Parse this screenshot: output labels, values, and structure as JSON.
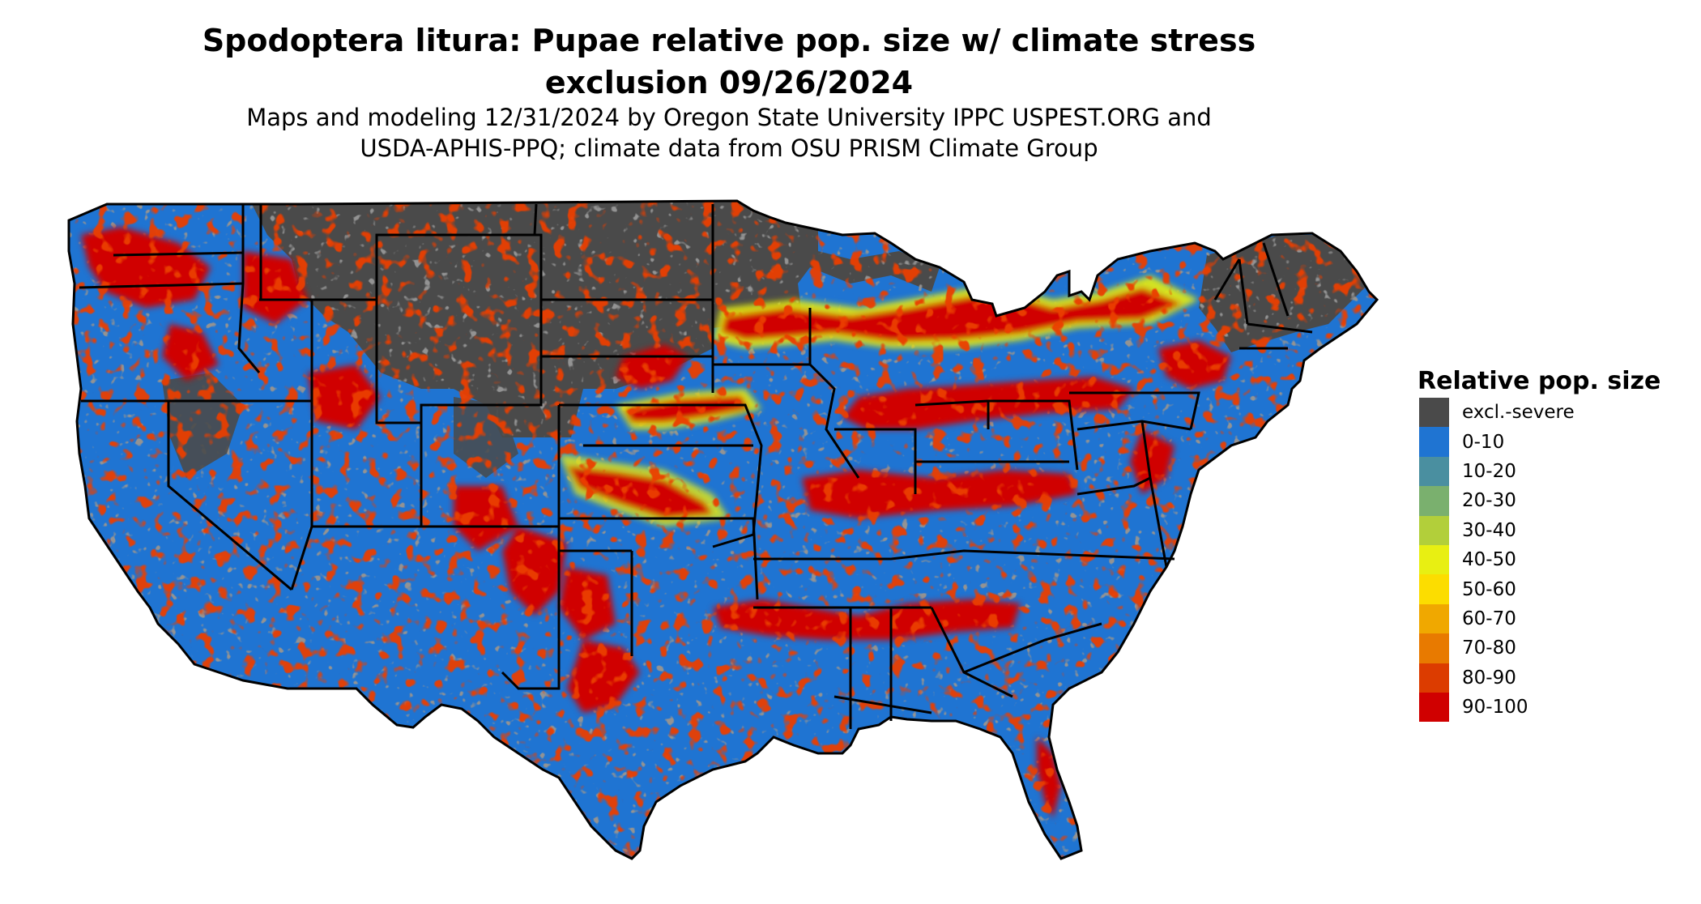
{
  "title_line1": "Spodoptera litura: Pupae relative pop. size w/ climate stress",
  "title_line2": "exclusion 09/26/2024",
  "subtitle_line1": "Maps and modeling 12/31/2024 by Oregon State University IPPC USPEST.ORG and",
  "subtitle_line2": "USDA-APHIS-PPQ; climate data from OSU PRISM Climate Group",
  "legend": {
    "title": "Relative pop. size",
    "items": [
      {
        "label": "excl.-severe",
        "color": "#4a4a4a"
      },
      {
        "label": "0-10",
        "color": "#1f74d2"
      },
      {
        "label": "10-20",
        "color": "#4a8fa0"
      },
      {
        "label": "20-30",
        "color": "#7ab06e"
      },
      {
        "label": "30-40",
        "color": "#b2cf3a"
      },
      {
        "label": "40-50",
        "color": "#e8ef12"
      },
      {
        "label": "50-60",
        "color": "#fcdd00"
      },
      {
        "label": "60-70",
        "color": "#f0a800"
      },
      {
        "label": "70-80",
        "color": "#e87a00"
      },
      {
        "label": "80-90",
        "color": "#dc3c00"
      },
      {
        "label": "90-100",
        "color": "#d00000"
      }
    ]
  },
  "map": {
    "region": "contiguous-united-states",
    "excluded_region_color": "#4a4a4a",
    "base_color": "#1f74d2",
    "hotspot_color": "#d00000",
    "border_color": "#000000"
  }
}
